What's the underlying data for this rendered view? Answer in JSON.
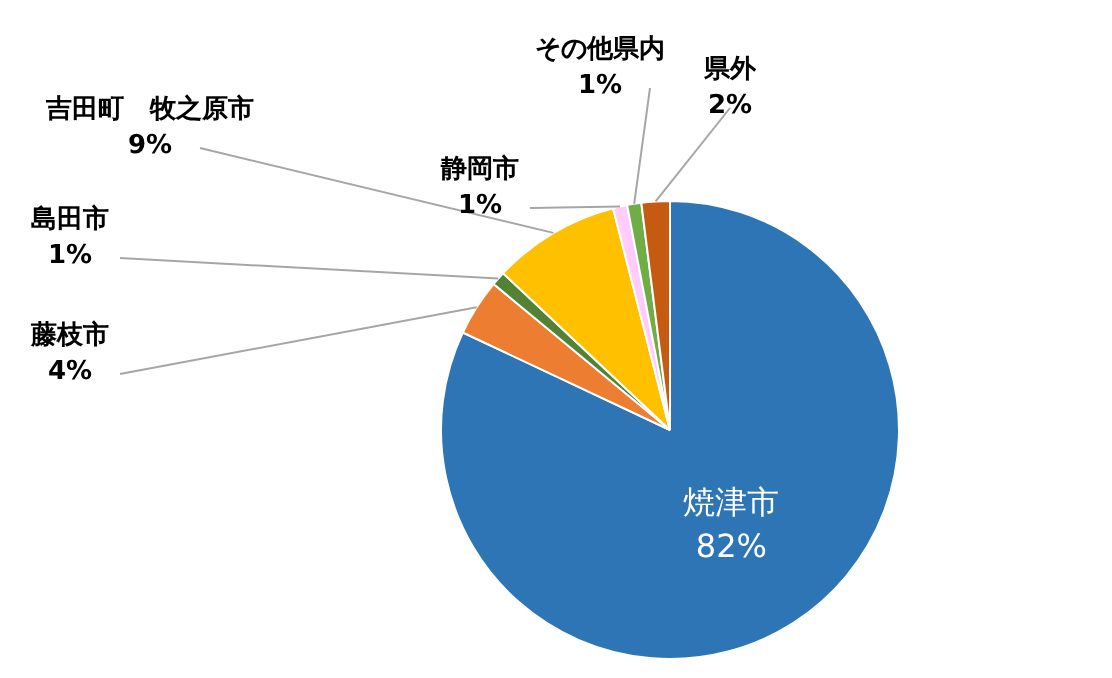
{
  "chart_data": {
    "type": "pie",
    "categories": [
      "焼津市",
      "藤枝市",
      "島田市",
      "吉田町　牧之原市",
      "静岡市",
      "その他県内",
      "県外"
    ],
    "values": [
      82,
      4,
      1,
      9,
      1,
      1,
      2
    ],
    "value_labels": [
      "82%",
      "4%",
      "1%",
      "9%",
      "1%",
      "1%",
      "2%"
    ],
    "colors": [
      "#2e75b6",
      "#ed7d31",
      "#548235",
      "#ffc000",
      "#ffccff",
      "#70ad47",
      "#c55a11"
    ],
    "legend": false
  }
}
